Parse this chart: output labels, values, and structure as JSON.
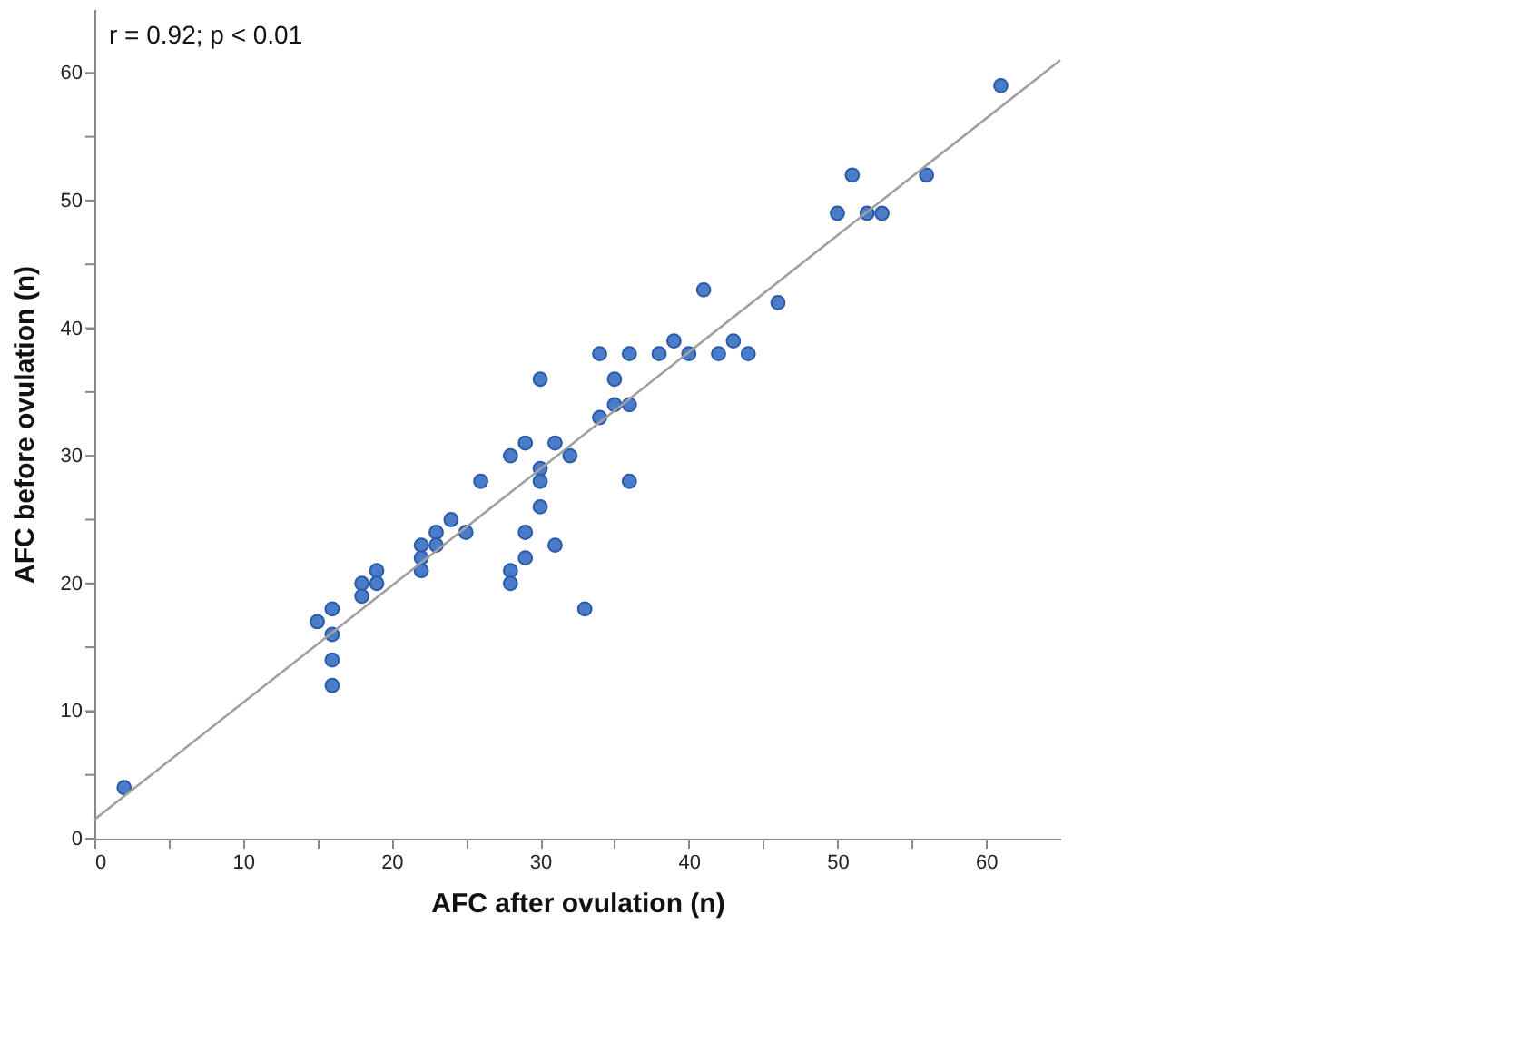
{
  "chart_data": {
    "type": "scatter",
    "xlabel": "AFC after ovulation (n)",
    "ylabel": "AFC before ovulation (n)",
    "annotations": [
      "r = 0.92; p < 0.01"
    ],
    "series": [
      {
        "color": "#4a7cc9",
        "marker": "circle",
        "x": [
          2,
          15,
          16,
          16,
          16,
          16,
          18,
          18,
          19,
          19,
          22,
          22,
          22,
          23,
          23,
          24,
          25,
          26,
          28,
          28,
          28,
          29,
          29,
          29,
          30,
          30,
          30,
          30,
          31,
          31,
          32,
          33,
          34,
          34,
          35,
          35,
          36,
          36,
          36,
          38,
          39,
          40,
          41,
          42,
          43,
          44,
          46,
          50,
          51,
          52,
          53,
          56,
          61
        ],
        "values": [
          4,
          17,
          18,
          16,
          14,
          12,
          20,
          19,
          21,
          20,
          23,
          22,
          21,
          24,
          23,
          25,
          24,
          28,
          30,
          21,
          20,
          31,
          24,
          22,
          36,
          29,
          28,
          26,
          31,
          23,
          30,
          18,
          38,
          33,
          36,
          34,
          38,
          34,
          28,
          38,
          39,
          38,
          43,
          38,
          39,
          38,
          42,
          49,
          52,
          49,
          49,
          52,
          59
        ]
      },
      {
        "type": "line",
        "color": "#a0a0a0",
        "x": [
          0,
          65
        ],
        "values": [
          1.5,
          61
        ]
      }
    ],
    "xlim": [
      0,
      65
    ],
    "ylim": [
      0,
      65
    ],
    "xticks": [
      0,
      {
        "value": 5,
        "label": null
      },
      10,
      {
        "value": 15,
        "label": null
      },
      20,
      {
        "value": 25,
        "label": null
      },
      30,
      {
        "value": 35,
        "label": null
      },
      40,
      {
        "value": 45,
        "label": null
      },
      50,
      {
        "value": 55,
        "label": null
      },
      60
    ],
    "yticks": [
      0,
      {
        "value": 5,
        "label": null
      },
      10,
      {
        "value": 15,
        "label": null
      },
      20,
      {
        "value": 25,
        "label": null
      },
      30,
      {
        "value": 35,
        "label": null
      },
      40,
      {
        "value": 45,
        "label": null
      },
      50,
      {
        "value": 55,
        "label": null
      },
      60
    ],
    "grid": false
  }
}
